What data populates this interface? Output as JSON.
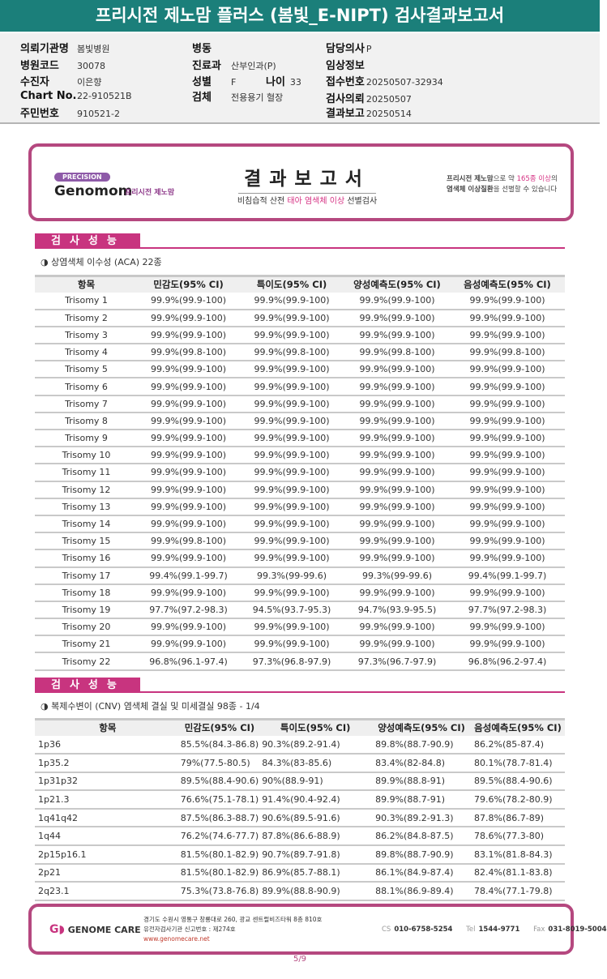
{
  "title": "프리시전 제노맘 플러스 (봄빛_E-NIPT) 검사결과보고서",
  "info": {
    "hospital_label": "의뢰기관명",
    "hospital": "봄빛병원",
    "code_label": "병원코드",
    "code": "30078",
    "patient_label": "수진자",
    "patient": "이은향",
    "chart_label": "Chart No.",
    "chart": "22-910521B",
    "id_label": "주민번호",
    "id": "910521-2",
    "ward_label": "병동",
    "ward": "",
    "dept_label": "진료과",
    "dept": "산부인과(P)",
    "sex_label": "성별",
    "sex": "F",
    "age_label": "나이",
    "age": "33",
    "specimen_label": "검체",
    "specimen": "전용용기 혈장",
    "doctor_label": "담당의사",
    "doctor": "P",
    "clinical_label": "임상정보",
    "clinical": "",
    "receipt_label": "접수번호",
    "receipt": "20250507-32934",
    "request_label": "검사의뢰",
    "request": "20250507",
    "report_label": "결과보고",
    "report": "20250514"
  },
  "report_header": {
    "badge": "PRECISION",
    "logo": "Genomom",
    "logo_sub": "프리시전 제노맘",
    "title": "결과보고서",
    "subtitle_pre": "비침습적 산전 ",
    "subtitle_hl": "태아 염색체 이상",
    "subtitle_post": " 선별검사",
    "note_line1_a": "프리시전 제노맘",
    "note_line1_b": "으로 약 ",
    "note_line1_c": "165종 이상",
    "note_line1_d": "의",
    "note_line2_a": "염색체 이상질환",
    "note_line2_b": "을 선별할 수 있습니다"
  },
  "aca": {
    "section": "검사성능",
    "subtitle": "◑ 상염색체 이수성 (ACA) 22종",
    "headers": [
      "항목",
      "민감도(95% CI)",
      "특이도(95% CI)",
      "양성예측도(95% CI)",
      "음성예측도(95% CI)"
    ],
    "rows": [
      [
        "Trisomy 1",
        "99.9%(99.9-100)",
        "99.9%(99.9-100)",
        "99.9%(99.9-100)",
        "99.9%(99.9-100)"
      ],
      [
        "Trisomy 2",
        "99.9%(99.9-100)",
        "99.9%(99.9-100)",
        "99.9%(99.9-100)",
        "99.9%(99.9-100)"
      ],
      [
        "Trisomy 3",
        "99.9%(99.9-100)",
        "99.9%(99.9-100)",
        "99.9%(99.9-100)",
        "99.9%(99.9-100)"
      ],
      [
        "Trisomy 4",
        "99.9%(99.8-100)",
        "99.9%(99.8-100)",
        "99.9%(99.8-100)",
        "99.9%(99.8-100)"
      ],
      [
        "Trisomy 5",
        "99.9%(99.9-100)",
        "99.9%(99.9-100)",
        "99.9%(99.9-100)",
        "99.9%(99.9-100)"
      ],
      [
        "Trisomy 6",
        "99.9%(99.9-100)",
        "99.9%(99.9-100)",
        "99.9%(99.9-100)",
        "99.9%(99.9-100)"
      ],
      [
        "Trisomy 7",
        "99.9%(99.9-100)",
        "99.9%(99.9-100)",
        "99.9%(99.9-100)",
        "99.9%(99.9-100)"
      ],
      [
        "Trisomy 8",
        "99.9%(99.9-100)",
        "99.9%(99.9-100)",
        "99.9%(99.9-100)",
        "99.9%(99.9-100)"
      ],
      [
        "Trisomy 9",
        "99.9%(99.9-100)",
        "99.9%(99.9-100)",
        "99.9%(99.9-100)",
        "99.9%(99.9-100)"
      ],
      [
        "Trisomy 10",
        "99.9%(99.9-100)",
        "99.9%(99.9-100)",
        "99.9%(99.9-100)",
        "99.9%(99.9-100)"
      ],
      [
        "Trisomy 11",
        "99.9%(99.9-100)",
        "99.9%(99.9-100)",
        "99.9%(99.9-100)",
        "99.9%(99.9-100)"
      ],
      [
        "Trisomy 12",
        "99.9%(99.9-100)",
        "99.9%(99.9-100)",
        "99.9%(99.9-100)",
        "99.9%(99.9-100)"
      ],
      [
        "Trisomy 13",
        "99.9%(99.9-100)",
        "99.9%(99.9-100)",
        "99.9%(99.9-100)",
        "99.9%(99.9-100)"
      ],
      [
        "Trisomy 14",
        "99.9%(99.9-100)",
        "99.9%(99.9-100)",
        "99.9%(99.9-100)",
        "99.9%(99.9-100)"
      ],
      [
        "Trisomy 15",
        "99.9%(99.8-100)",
        "99.9%(99.9-100)",
        "99.9%(99.9-100)",
        "99.9%(99.9-100)"
      ],
      [
        "Trisomy 16",
        "99.9%(99.9-100)",
        "99.9%(99.9-100)",
        "99.9%(99.9-100)",
        "99.9%(99.9-100)"
      ],
      [
        "Trisomy 17",
        "99.4%(99.1-99.7)",
        "99.3%(99-99.6)",
        "99.3%(99-99.6)",
        "99.4%(99.1-99.7)"
      ],
      [
        "Trisomy 18",
        "99.9%(99.9-100)",
        "99.9%(99.9-100)",
        "99.9%(99.9-100)",
        "99.9%(99.9-100)"
      ],
      [
        "Trisomy 19",
        "97.7%(97.2-98.3)",
        "94.5%(93.7-95.3)",
        "94.7%(93.9-95.5)",
        "97.7%(97.2-98.3)"
      ],
      [
        "Trisomy 20",
        "99.9%(99.9-100)",
        "99.9%(99.9-100)",
        "99.9%(99.9-100)",
        "99.9%(99.9-100)"
      ],
      [
        "Trisomy 21",
        "99.9%(99.9-100)",
        "99.9%(99.9-100)",
        "99.9%(99.9-100)",
        "99.9%(99.9-100)"
      ],
      [
        "Trisomy 22",
        "96.8%(96.1-97.4)",
        "97.3%(96.8-97.9)",
        "97.3%(96.7-97.9)",
        "96.8%(96.2-97.4)"
      ]
    ]
  },
  "cnv": {
    "section": "검사성능",
    "subtitle": "◑ 복제수변이 (CNV) 염색체 결실 및 미세결실 98종 - 1/4",
    "headers": [
      "항목",
      "민감도(95% CI)",
      "특이도(95% CI)",
      "양성예측도(95% CI)",
      "음성예측도(95% CI)"
    ],
    "rows": [
      [
        "1p36",
        "85.5%(84.3-86.8)",
        "90.3%(89.2-91.4)",
        "89.8%(88.7-90.9)",
        "86.2%(85-87.4)"
      ],
      [
        "1p35.2",
        "79%(77.5-80.5)",
        "84.3%(83-85.6)",
        "83.4%(82-84.8)",
        "80.1%(78.7-81.4)"
      ],
      [
        "1p31p32",
        "89.5%(88.4-90.6)",
        "90%(88.9-91)",
        "89.9%(88.8-91)",
        "89.5%(88.4-90.6)"
      ],
      [
        "1p21.3",
        "76.6%(75.1-78.1)",
        "91.4%(90.4-92.4)",
        "89.9%(88.7-91)",
        "79.6%(78.2-80.9)"
      ],
      [
        "1q41q42",
        "87.5%(86.3-88.7)",
        "90.6%(89.5-91.6)",
        "90.3%(89.2-91.3)",
        "87.8%(86.7-89)"
      ],
      [
        "1q44",
        "76.2%(74.6-77.7)",
        "87.8%(86.6-88.9)",
        "86.2%(84.8-87.5)",
        "78.6%(77.3-80)"
      ],
      [
        "2p15p16.1",
        "81.5%(80.1-82.9)",
        "90.7%(89.7-91.8)",
        "89.8%(88.7-90.9)",
        "83.1%(81.8-84.3)"
      ],
      [
        "2p21",
        "81.5%(80.1-82.9)",
        "86.9%(85.7-88.1)",
        "86.1%(84.9-87.4)",
        "82.4%(81.1-83.8)"
      ],
      [
        "2q23.1",
        "75.3%(73.8-76.8)",
        "89.9%(88.8-90.9)",
        "88.1%(86.9-89.4)",
        "78.4%(77.1-79.8)"
      ]
    ]
  },
  "footer": {
    "logo": "GENOME CARE",
    "address": "경기도 수원시 영통구 창룡대로 260, 광교 센트럴비즈타워 8층 810호",
    "license": "유전자검사기관 신고번호 : 제274호",
    "url": "www.genomecare.net",
    "cs_label": "CS",
    "cs": "010-6758-5254",
    "tel_label": "Tel",
    "tel": "1544-9771",
    "fax_label": "Fax",
    "fax": "031-8019-5004"
  },
  "page": "5/9",
  "colors": {
    "title_bar": "#1b7f7a",
    "accent": "#c8347f",
    "frame": "#b5487f"
  }
}
